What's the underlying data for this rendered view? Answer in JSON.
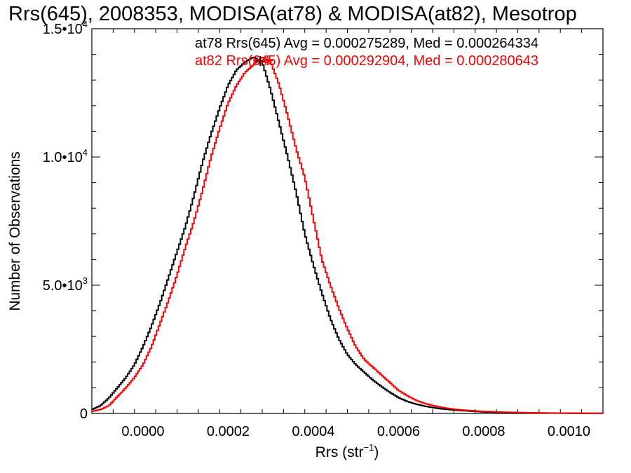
{
  "chart_data": {
    "type": "step-histogram",
    "title": "Rrs(645), 2008353, MODISA(at78) & MODISA(at82), Mesotrop",
    "xlabel_base": "Rrs (str",
    "xlabel_sup": "−1",
    "xlabel_end": ")",
    "ylabel": "Number of Observations",
    "xlim": [
      -0.00012,
      0.00108
    ],
    "ylim": [
      0,
      15000
    ],
    "x_ticks": [
      {
        "value": 0.0,
        "label": "0.0000"
      },
      {
        "value": 0.0002,
        "label": "0.0002"
      },
      {
        "value": 0.0004,
        "label": "0.0004"
      },
      {
        "value": 0.0006,
        "label": "0.0006"
      },
      {
        "value": 0.0008,
        "label": "0.0008"
      },
      {
        "value": 0.001,
        "label": "0.0010"
      }
    ],
    "y_ticks": [
      {
        "value": 0,
        "mant": "0",
        "exp": ""
      },
      {
        "value": 5000,
        "mant": "5.0•10",
        "exp": "3"
      },
      {
        "value": 10000,
        "mant": "1.0•10",
        "exp": "4"
      },
      {
        "value": 15000,
        "mant": "1.5•10",
        "exp": "4"
      }
    ],
    "series": [
      {
        "name": "at78",
        "color": "#000000",
        "stats": "at78 Rrs(645) Avg = 0.000275289, Med = 0.000264334",
        "avg": 0.000275289,
        "med": 0.000264334,
        "points": [
          [
            -0.00012,
            150
          ],
          [
            -0.0001,
            300
          ],
          [
            -8e-05,
            600
          ],
          [
            -6e-05,
            1000
          ],
          [
            -4e-05,
            1400
          ],
          [
            -2e-05,
            1900
          ],
          [
            0.0,
            2600
          ],
          [
            2e-05,
            3400
          ],
          [
            4e-05,
            4300
          ],
          [
            6e-05,
            5300
          ],
          [
            8e-05,
            6300
          ],
          [
            0.0001,
            7300
          ],
          [
            0.00012,
            8500
          ],
          [
            0.00014,
            9800
          ],
          [
            0.00016,
            10900
          ],
          [
            0.00018,
            11900
          ],
          [
            0.0002,
            12800
          ],
          [
            0.00022,
            13400
          ],
          [
            0.00024,
            13700
          ],
          [
            0.00026,
            13900
          ],
          [
            0.00027,
            13800
          ],
          [
            0.00028,
            13700
          ],
          [
            0.0003,
            12600
          ],
          [
            0.00032,
            11300
          ],
          [
            0.00034,
            10000
          ],
          [
            0.00036,
            8600
          ],
          [
            0.00038,
            7000
          ],
          [
            0.0004,
            5800
          ],
          [
            0.00042,
            4700
          ],
          [
            0.00044,
            3700
          ],
          [
            0.00046,
            2900
          ],
          [
            0.00048,
            2300
          ],
          [
            0.0005,
            1900
          ],
          [
            0.00052,
            1600
          ],
          [
            0.00054,
            1300
          ],
          [
            0.00056,
            1050
          ],
          [
            0.00058,
            820
          ],
          [
            0.0006,
            620
          ],
          [
            0.00062,
            470
          ],
          [
            0.00064,
            370
          ],
          [
            0.00066,
            290
          ],
          [
            0.00068,
            230
          ],
          [
            0.0007,
            180
          ],
          [
            0.00072,
            150
          ],
          [
            0.00074,
            120
          ],
          [
            0.00076,
            100
          ],
          [
            0.00078,
            80
          ],
          [
            0.0008,
            60
          ],
          [
            0.00085,
            40
          ],
          [
            0.0009,
            25
          ],
          [
            0.00095,
            15
          ],
          [
            0.001,
            8
          ],
          [
            0.00108,
            5
          ]
        ]
      },
      {
        "name": "at82",
        "color": "#ff0000",
        "stats": "at82 Rrs(645) Avg = 0.000292904, Med = 0.000280643",
        "avg": 0.000292904,
        "med": 0.000280643,
        "points": [
          [
            -0.00012,
            80
          ],
          [
            -0.0001,
            150
          ],
          [
            -8e-05,
            300
          ],
          [
            -6e-05,
            650
          ],
          [
            -4e-05,
            1000
          ],
          [
            -2e-05,
            1400
          ],
          [
            0.0,
            1900
          ],
          [
            2e-05,
            2600
          ],
          [
            4e-05,
            3500
          ],
          [
            6e-05,
            4400
          ],
          [
            8e-05,
            5400
          ],
          [
            0.0001,
            6500
          ],
          [
            0.00012,
            7500
          ],
          [
            0.00014,
            8700
          ],
          [
            0.00016,
            10000
          ],
          [
            0.00018,
            11100
          ],
          [
            0.0002,
            12100
          ],
          [
            0.00022,
            12800
          ],
          [
            0.00024,
            13300
          ],
          [
            0.00026,
            13600
          ],
          [
            0.00028,
            13900
          ],
          [
            0.0003,
            13700
          ],
          [
            0.00032,
            12800
          ],
          [
            0.00034,
            11600
          ],
          [
            0.00036,
            10300
          ],
          [
            0.00038,
            9200
          ],
          [
            0.0004,
            7600
          ],
          [
            0.00042,
            6000
          ],
          [
            0.00044,
            5000
          ],
          [
            0.00046,
            4100
          ],
          [
            0.00048,
            3300
          ],
          [
            0.0005,
            2600
          ],
          [
            0.00052,
            2100
          ],
          [
            0.00054,
            1800
          ],
          [
            0.00056,
            1500
          ],
          [
            0.00058,
            1200
          ],
          [
            0.0006,
            900
          ],
          [
            0.00062,
            700
          ],
          [
            0.00064,
            520
          ],
          [
            0.00066,
            400
          ],
          [
            0.00068,
            310
          ],
          [
            0.0007,
            240
          ],
          [
            0.00072,
            190
          ],
          [
            0.00074,
            150
          ],
          [
            0.00076,
            120
          ],
          [
            0.00078,
            100
          ],
          [
            0.0008,
            80
          ],
          [
            0.00085,
            50
          ],
          [
            0.0009,
            30
          ],
          [
            0.00095,
            18
          ],
          [
            0.001,
            10
          ],
          [
            0.00108,
            6
          ]
        ]
      }
    ]
  }
}
